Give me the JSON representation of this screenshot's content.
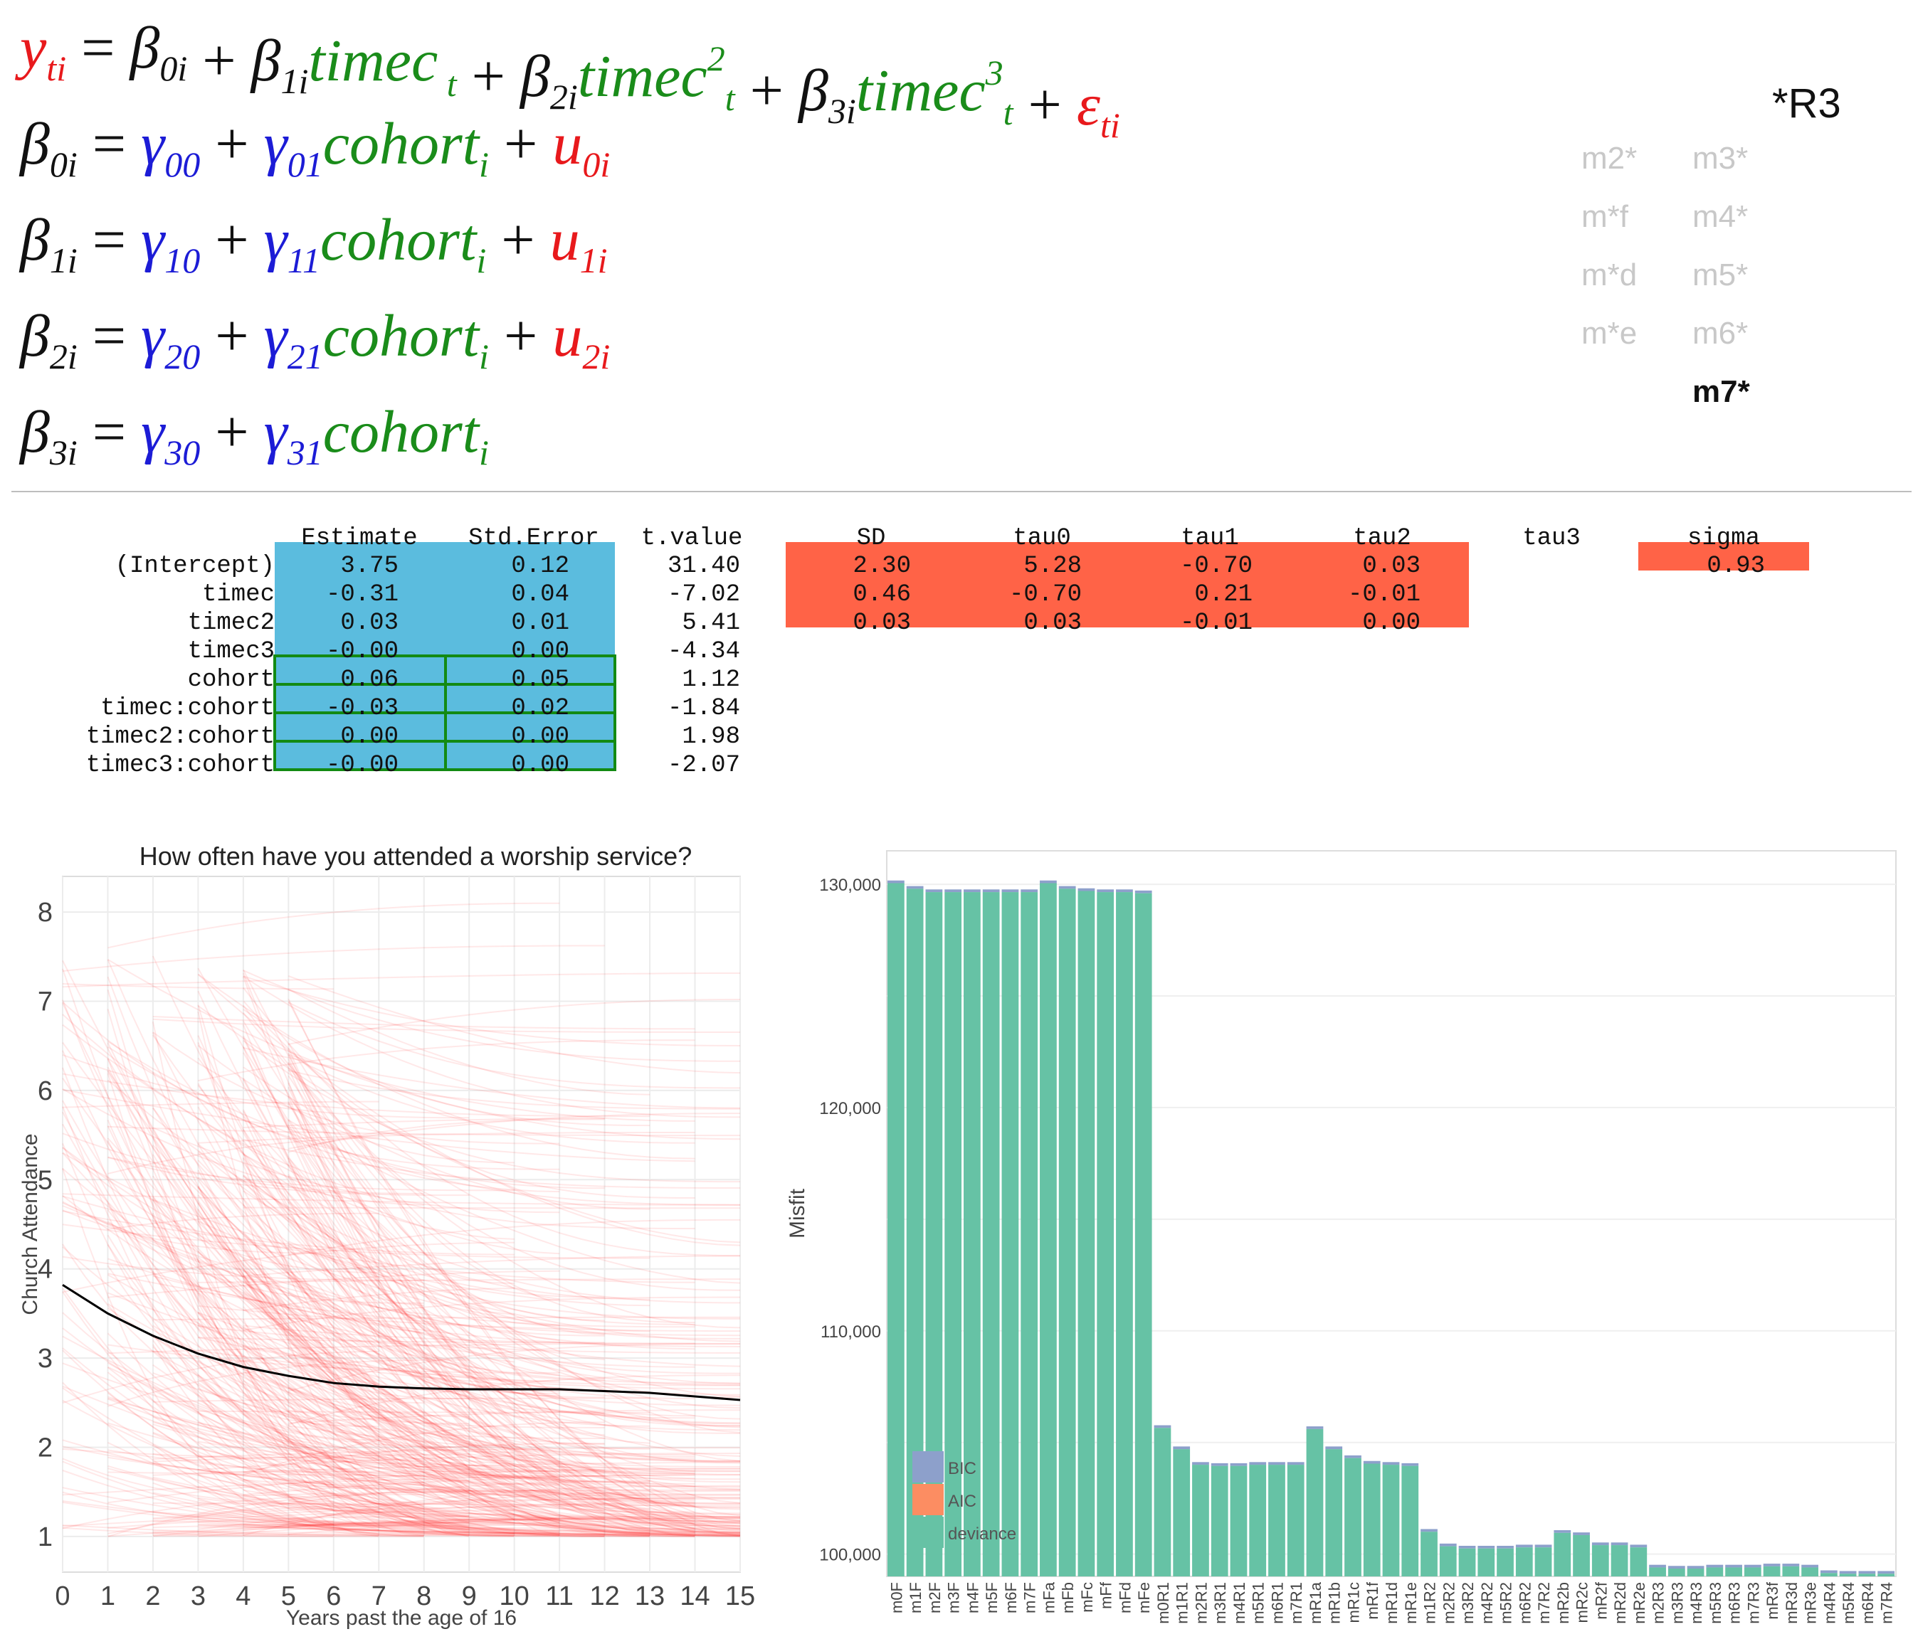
{
  "equations": [
    {
      "lhs": "y",
      "lhs_sub": "ti",
      "rhs": [
        {
          "sym": "β",
          "sub": "0i",
          "term": ""
        },
        {
          "sym": "β",
          "sub": "1i",
          "term": "timec",
          "tsub": "t",
          "sup": ""
        },
        {
          "sym": "β",
          "sub": "2i",
          "term": "timec",
          "tsub": "t",
          "sup": "2"
        },
        {
          "sym": "β",
          "sub": "3i",
          "term": "timec",
          "tsub": "t",
          "sup": "3"
        }
      ],
      "error": "ε",
      "error_sub": "ti"
    },
    {
      "lhs": "β",
      "lhs_sub": "0i",
      "g0": "00",
      "g1": "01",
      "term": "cohort",
      "tsub": "i",
      "u": "u",
      "u_sub": "0i"
    },
    {
      "lhs": "β",
      "lhs_sub": "1i",
      "g0": "10",
      "g1": "11",
      "term": "cohort",
      "tsub": "i",
      "u": "u",
      "u_sub": "1i"
    },
    {
      "lhs": "β",
      "lhs_sub": "2i",
      "g0": "20",
      "g1": "21",
      "term": "cohort",
      "tsub": "i",
      "u": "u",
      "u_sub": "2i"
    },
    {
      "lhs": "β",
      "lhs_sub": "3i",
      "g0": "30",
      "g1": "31",
      "term": "cohort",
      "tsub": "i",
      "u": "",
      "u_sub": ""
    }
  ],
  "model_label": "*R3",
  "model_list": {
    "col1": [
      "m2*",
      "m*f",
      "m*d",
      "m*e"
    ],
    "col2": [
      "m3*",
      "m4*",
      "m5*",
      "m6*",
      "m7*"
    ],
    "active": "m7*"
  },
  "table": {
    "columns": [
      "Estimate",
      "Std.Error",
      "t.value",
      "SD",
      "tau0",
      "tau1",
      "tau2",
      "tau3",
      "sigma"
    ],
    "rows": [
      {
        "name": "(Intercept)",
        "est": "3.75",
        "se": "0.12",
        "t": "31.40",
        "sd": "2.30",
        "tau0": "5.28",
        "tau1": "-0.70",
        "tau2": "0.03",
        "sigma": "0.93"
      },
      {
        "name": "timec",
        "est": "-0.31",
        "se": "0.04",
        "t": "-7.02",
        "sd": "0.46",
        "tau0": "-0.70",
        "tau1": "0.21",
        "tau2": "-0.01",
        "sigma": ""
      },
      {
        "name": "timec2",
        "est": "0.03",
        "se": "0.01",
        "t": "5.41",
        "sd": "0.03",
        "tau0": "0.03",
        "tau1": "-0.01",
        "tau2": "0.00",
        "sigma": ""
      },
      {
        "name": "timec3",
        "est": "-0.00",
        "se": "0.00",
        "t": "-4.34",
        "sd": "",
        "tau0": "",
        "tau1": "",
        "tau2": "",
        "sigma": ""
      },
      {
        "name": "cohort",
        "est": "0.06",
        "se": "0.05",
        "t": "1.12",
        "sd": "",
        "tau0": "",
        "tau1": "",
        "tau2": "",
        "sigma": ""
      },
      {
        "name": "timec:cohort",
        "est": "-0.03",
        "se": "0.02",
        "t": "-1.84",
        "sd": "",
        "tau0": "",
        "tau1": "",
        "tau2": "",
        "sigma": ""
      },
      {
        "name": "timec2:cohort",
        "est": "0.00",
        "se": "0.00",
        "t": "1.98",
        "sd": "",
        "tau0": "",
        "tau1": "",
        "tau2": "",
        "sigma": ""
      },
      {
        "name": "timec3:cohort",
        "est": "-0.00",
        "se": "0.00",
        "t": "-2.07",
        "sd": "",
        "tau0": "",
        "tau1": "",
        "tau2": "",
        "sigma": ""
      }
    ],
    "colors": {
      "fixed": "#5bbcde",
      "random": "#ff6347",
      "border": "#138a13"
    }
  },
  "chart_data": [
    {
      "type": "line",
      "title": "How often have you attended a worship service?",
      "xlabel": "Years past the age of 16",
      "ylabel": "Church Attendance",
      "xlim": [
        0,
        15
      ],
      "ylim": [
        0.6,
        8.4
      ],
      "xticks": [
        "0",
        "1",
        "2",
        "3",
        "4",
        "5",
        "6",
        "7",
        "8",
        "9",
        "10",
        "11",
        "12",
        "13",
        "14",
        "15"
      ],
      "yticks": [
        "1",
        "2",
        "3",
        "4",
        "5",
        "6",
        "7",
        "8"
      ],
      "grid": true,
      "series": [
        {
          "x": [
            0,
            1,
            2,
            3,
            4,
            5,
            6,
            7,
            8,
            9,
            10,
            11,
            12,
            13,
            14,
            15
          ],
          "y": [
            3.82,
            3.5,
            3.25,
            3.05,
            2.9,
            2.8,
            2.72,
            2.68,
            2.66,
            2.65,
            2.65,
            2.65,
            2.63,
            2.61,
            2.57,
            2.53
          ]
        }
      ],
      "individual_trajectories_color": "#ff0000",
      "mean_line_color": "#000000"
    },
    {
      "type": "bar",
      "xlabel": "",
      "ylabel": "Misfit",
      "ylim": [
        99000,
        131500
      ],
      "yticks": [
        "100,000",
        "110,000",
        "120,000",
        "130,000"
      ],
      "legend": {
        "position": "bottom-left",
        "entries": [
          "BIC",
          "AIC",
          "deviance"
        ],
        "colors": [
          "#8da0cb",
          "#fc8d62",
          "#66c2a5"
        ]
      },
      "categories": [
        "m0F",
        "m1F",
        "m2F",
        "m3F",
        "m4F",
        "m5F",
        "m6F",
        "m7F",
        "mFa",
        "mFb",
        "mFc",
        "mFf",
        "mFd",
        "mFe",
        "m0R1",
        "m1R1",
        "m2R1",
        "m3R1",
        "m4R1",
        "m5R1",
        "m6R1",
        "m7R1",
        "mR1a",
        "mR1b",
        "mR1c",
        "mR1f",
        "mR1d",
        "mR1e",
        "m1R2",
        "m2R2",
        "m3R2",
        "m4R2",
        "m5R2",
        "m6R2",
        "m7R2",
        "mR2b",
        "mR2c",
        "mR2f",
        "mR2d",
        "mR2e",
        "m2R3",
        "m3R3",
        "m4R3",
        "m5R3",
        "m6R3",
        "m7R3",
        "mR3f",
        "mR3d",
        "mR3e",
        "m4R4",
        "m5R4",
        "m6R4",
        "m7R4"
      ],
      "series": [
        {
          "name": "deviance",
          "values": [
            130050,
            129800,
            129650,
            129650,
            129650,
            129650,
            129650,
            129650,
            130050,
            129800,
            129700,
            129650,
            129650,
            129600,
            105650,
            104700,
            104000,
            103950,
            103950,
            104000,
            104000,
            104000,
            105600,
            104700,
            104300,
            104050,
            104000,
            103950,
            101000,
            100350,
            100250,
            100250,
            100250,
            100300,
            100300,
            100950,
            100850,
            100400,
            100400,
            100300,
            99400,
            99350,
            99350,
            99400,
            99400,
            99400,
            99450,
            99450,
            99400,
            99150,
            99120,
            99120,
            99120
          ]
        }
      ]
    }
  ]
}
